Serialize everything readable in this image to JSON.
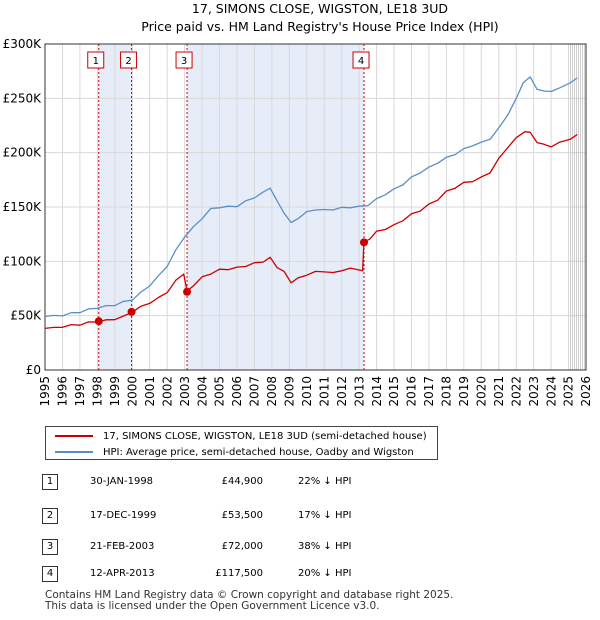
{
  "title_line1": "17, SIMONS CLOSE, WIGSTON, LE18 3UD",
  "title_line2": "Price paid vs. HM Land Registry's House Price Index (HPI)",
  "colors": {
    "property": "#cc0000",
    "hpi": "#5b8fc9",
    "shade": "#e7edf8",
    "grid": "#d9d9d9"
  },
  "legend": {
    "property": "17, SIMONS CLOSE, WIGSTON, LE18 3UD (semi-detached house)",
    "hpi": "HPI: Average price, semi-detached house, Oadby and Wigston"
  },
  "transactions": [
    {
      "num": "1",
      "date": "30-JAN-1998",
      "price": "£44,900",
      "hpi": "22% ↓ HPI"
    },
    {
      "num": "2",
      "date": "17-DEC-1999",
      "price": "£53,500",
      "hpi": "17% ↓ HPI"
    },
    {
      "num": "3",
      "date": "21-FEB-2003",
      "price": "£72,000",
      "hpi": "38% ↓ HPI"
    },
    {
      "num": "4",
      "date": "12-APR-2013",
      "price": "£117,500",
      "hpi": "20% ↓ HPI"
    }
  ],
  "footer": {
    "line1": "Contains HM Land Registry data © Crown copyright and database right 2025.",
    "line2": "This data is licensed under the Open Government Licence v3.0."
  },
  "chart_data": {
    "type": "line",
    "title": "17, SIMONS CLOSE, WIGSTON, LE18 3UD",
    "subtitle": "Price paid vs. HM Land Registry's House Price Index (HPI)",
    "xlabel": "",
    "ylabel": "",
    "xlim": [
      1995,
      2026
    ],
    "ylim": [
      0,
      300000
    ],
    "y_ticks": [
      0,
      50000,
      100000,
      150000,
      200000,
      250000,
      300000
    ],
    "y_tick_labels": [
      "£0",
      "£50K",
      "£100K",
      "£150K",
      "£200K",
      "£250K",
      "£300K"
    ],
    "x_ticks": [
      1995,
      1996,
      1997,
      1998,
      1999,
      2000,
      2001,
      2002,
      2003,
      2004,
      2005,
      2006,
      2007,
      2008,
      2009,
      2010,
      2011,
      2012,
      2013,
      2014,
      2015,
      2016,
      2017,
      2018,
      2019,
      2020,
      2021,
      2022,
      2023,
      2024,
      2025,
      2026
    ],
    "grid": true,
    "shaded_ranges": [
      [
        1998.08,
        1999.96
      ],
      [
        2003.14,
        2013.28
      ]
    ],
    "forecast_start": 2025.1,
    "sales": [
      {
        "label": "1",
        "x": 1998.08,
        "y": 44900
      },
      {
        "label": "2",
        "x": 1999.96,
        "y": 53500
      },
      {
        "label": "3",
        "x": 2003.14,
        "y": 72000
      },
      {
        "label": "4",
        "x": 2013.28,
        "y": 117500
      }
    ],
    "series": [
      {
        "name": "17, SIMONS CLOSE, WIGSTON, LE18 3UD (semi-detached house)",
        "x": [
          1995,
          1995.5,
          1996,
          1996.5,
          1997,
          1997.5,
          1998.08,
          1998.5,
          1999,
          1999.5,
          1999.96,
          2000.5,
          2001,
          2001.5,
          2002,
          2002.5,
          2002.95,
          2003.14,
          2003.5,
          2004,
          2004.5,
          2005,
          2005.5,
          2006,
          2006.5,
          2007,
          2007.5,
          2007.9,
          2008.3,
          2008.7,
          2009.1,
          2009.5,
          2010,
          2010.5,
          2011,
          2011.5,
          2012,
          2012.5,
          2013.2,
          2013.28,
          2013.6,
          2014,
          2014.5,
          2015,
          2015.5,
          2016,
          2016.5,
          2017,
          2017.5,
          2018,
          2018.5,
          2019,
          2019.5,
          2020,
          2020.5,
          2021,
          2021.5,
          2022,
          2022.5,
          2022.8,
          2023.2,
          2023.6,
          2024,
          2024.5,
          2025.1,
          2025.5
        ],
        "y": [
          39000,
          38500,
          40000,
          41000,
          42000,
          43500,
          44900,
          45500,
          47000,
          49000,
          53500,
          58000,
          62000,
          66000,
          72000,
          82000,
          89000,
          72000,
          78000,
          85000,
          89000,
          92000,
          93000,
          94000,
          96000,
          98000,
          100000,
          103000,
          95000,
          90000,
          81000,
          84000,
          88000,
          90000,
          91000,
          89000,
          92000,
          93000,
          92000,
          117500,
          121000,
          127000,
          130000,
          133000,
          138000,
          143000,
          147000,
          152000,
          157000,
          164000,
          168000,
          172000,
          174000,
          177000,
          182000,
          194000,
          205000,
          213000,
          220000,
          218000,
          210000,
          207000,
          206000,
          209000,
          213000,
          216000
        ]
      },
      {
        "name": "HPI: Average price, semi-detached house, Oadby and Wigston",
        "x": [
          1995,
          1995.5,
          1996,
          1996.5,
          1997,
          1997.5,
          1998,
          1998.5,
          1999,
          1999.5,
          2000,
          2000.5,
          2001,
          2001.5,
          2002,
          2002.5,
          2003,
          2003.5,
          2004,
          2004.5,
          2005,
          2005.5,
          2006,
          2006.5,
          2007,
          2007.5,
          2007.9,
          2008.3,
          2008.7,
          2009.1,
          2009.5,
          2010,
          2010.5,
          2011,
          2011.5,
          2012,
          2012.5,
          2013,
          2013.5,
          2014,
          2014.5,
          2015,
          2015.5,
          2016,
          2016.5,
          2017,
          2017.5,
          2018,
          2018.5,
          2019,
          2019.5,
          2020,
          2020.5,
          2021,
          2021.5,
          2022,
          2022.4,
          2022.8,
          2023.2,
          2023.6,
          2024,
          2024.5,
          2025.1,
          2025.5
        ],
        "y": [
          50000,
          49500,
          50500,
          52000,
          53500,
          55500,
          57500,
          58500,
          60000,
          62500,
          65000,
          71000,
          78000,
          86000,
          96000,
          110000,
          123000,
          131000,
          140000,
          148000,
          150000,
          150000,
          151000,
          155000,
          159000,
          163000,
          168000,
          155000,
          145000,
          135000,
          140000,
          145000,
          148000,
          147000,
          148000,
          149000,
          150000,
          150000,
          152000,
          157000,
          162000,
          166000,
          171000,
          177000,
          182000,
          186000,
          191000,
          195000,
          199000,
          203000,
          207000,
          209000,
          213000,
          222000,
          235000,
          249000,
          265000,
          269000,
          259000,
          256000,
          257000,
          259000,
          265000,
          268000
        ]
      }
    ]
  }
}
